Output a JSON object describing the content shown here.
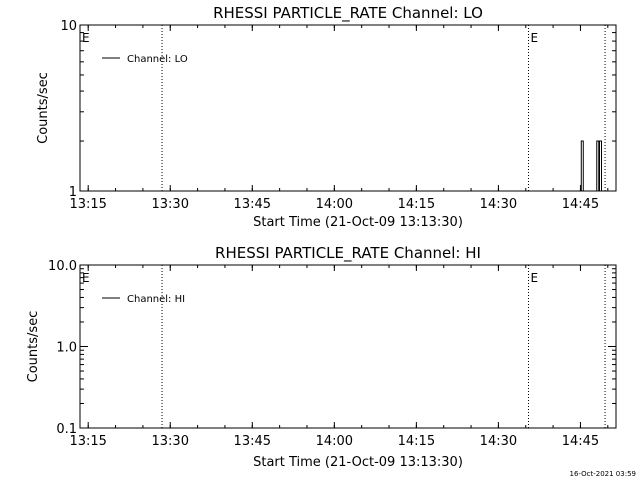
{
  "chart_data": [
    {
      "type": "line",
      "title": "RHESSI PARTICLE_RATE Channel: LO",
      "ylabel": "Counts/sec",
      "xlabel": "Start Time (21-Oct-09 13:13:30)",
      "y_scale": "log",
      "ylim": [
        1,
        10
      ],
      "y_ticks": [
        "1",
        "10"
      ],
      "x_ticks": [
        "13:15",
        "13:30",
        "13:45",
        "14:00",
        "14:15",
        "14:30",
        "14:45"
      ],
      "xlim": [
        "13:13:30",
        "14:51:30"
      ],
      "legend": {
        "label": "Channel: LO",
        "placement": "top-left"
      },
      "event_markers": [
        {
          "time": "13:13:30",
          "label": "E"
        },
        {
          "time": "14:35:30",
          "label": "E"
        }
      ],
      "dotted_lines": [
        "13:28:30",
        "14:35:30",
        "14:49:30"
      ],
      "series": [
        {
          "name": "Channel: LO",
          "spikes": [
            {
              "time": "14:45:20",
              "value": 2
            },
            {
              "time": "14:48:10",
              "value": 2
            },
            {
              "time": "14:48:40",
              "value": 2
            }
          ]
        }
      ]
    },
    {
      "type": "line",
      "title": "RHESSI PARTICLE_RATE Channel: HI",
      "ylabel": "Counts/sec",
      "xlabel": "Start Time (21-Oct-09 13:13:30)",
      "y_scale": "log",
      "ylim": [
        0.1,
        10
      ],
      "y_ticks": [
        "0.1",
        "1.0",
        "10.0"
      ],
      "x_ticks": [
        "13:15",
        "13:30",
        "13:45",
        "14:00",
        "14:15",
        "14:30",
        "14:45"
      ],
      "xlim": [
        "13:13:30",
        "14:51:30"
      ],
      "legend": {
        "label": "Channel: HI",
        "placement": "top-left"
      },
      "event_markers": [
        {
          "time": "13:13:30",
          "label": "E"
        },
        {
          "time": "14:35:30",
          "label": "E"
        }
      ],
      "dotted_lines": [
        "13:28:30",
        "14:35:30",
        "14:49:30"
      ],
      "series": [
        {
          "name": "Channel: HI",
          "spikes": []
        }
      ]
    }
  ],
  "footer": {
    "timestamp": "16-Oct-2021 03:59"
  }
}
